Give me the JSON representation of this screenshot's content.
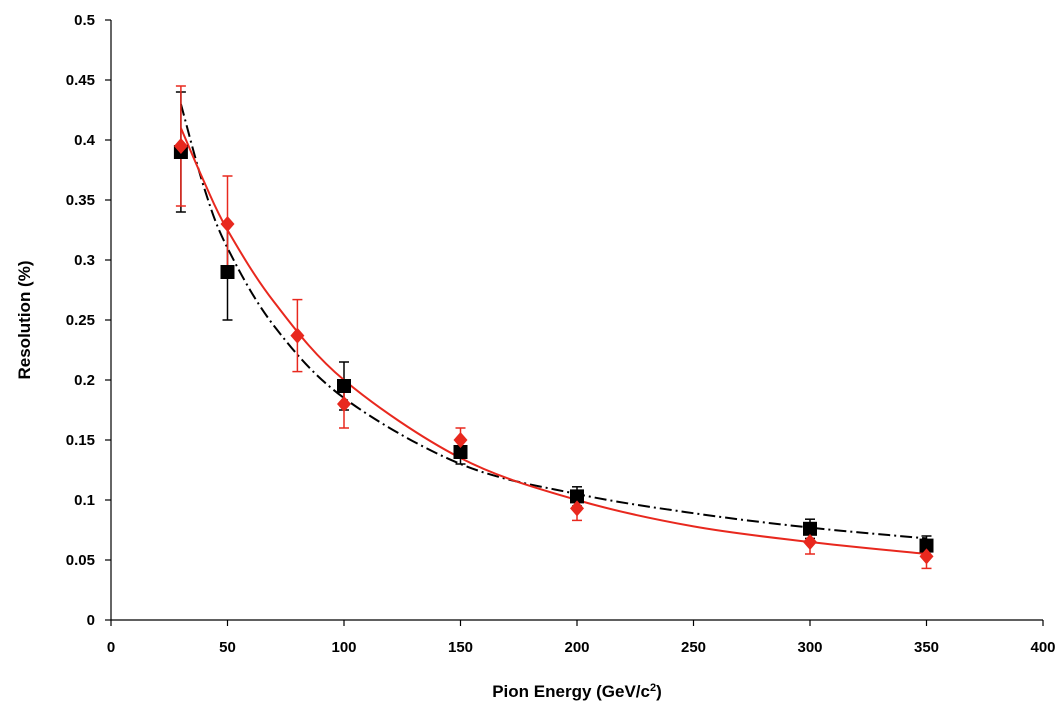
{
  "chart_data": {
    "type": "scatter",
    "title": "",
    "xlabel": "Pion Energy (GeV/c",
    "xlabel_sup": "2",
    "xlabel_end": ")",
    "ylabel": "Resolution (%)",
    "xlim": [
      0,
      400
    ],
    "ylim": [
      0,
      0.5
    ],
    "x_ticks": [
      "0",
      "50",
      "100",
      "150",
      "200",
      "250",
      "300",
      "350",
      "400"
    ],
    "y_ticks": [
      "0",
      "0.05",
      "0.1",
      "0.15",
      "0.2",
      "0.25",
      "0.3",
      "0.35",
      "0.4",
      "0.45",
      "0.5"
    ],
    "grid": false,
    "legend": "none",
    "series": [
      {
        "color": "#000000",
        "marker": "square",
        "fit_style": "dash-dot",
        "x": [
          30,
          50,
          100,
          150,
          200,
          300,
          350
        ],
        "y": [
          0.39,
          0.29,
          0.195,
          0.14,
          0.103,
          0.076,
          0.062
        ],
        "err": [
          0.05,
          0.04,
          0.02,
          0.01,
          0.008,
          0.008,
          0.008
        ],
        "fit": {
          "x": [
            30,
            40,
            50,
            70,
            100,
            150,
            200,
            250,
            300,
            350
          ],
          "y": [
            0.43,
            0.36,
            0.31,
            0.245,
            0.185,
            0.13,
            0.105,
            0.089,
            0.077,
            0.068
          ]
        }
      },
      {
        "color": "#e8281e",
        "marker": "diamond",
        "fit_style": "solid",
        "x": [
          30,
          50,
          80,
          100,
          150,
          200,
          300,
          350
        ],
        "y": [
          0.395,
          0.33,
          0.237,
          0.18,
          0.15,
          0.093,
          0.065,
          0.053
        ],
        "err": [
          0.05,
          0.04,
          0.03,
          0.02,
          0.01,
          0.01,
          0.01,
          0.01
        ],
        "fit": {
          "x": [
            30,
            40,
            50,
            70,
            100,
            150,
            200,
            250,
            300,
            350
          ],
          "y": [
            0.41,
            0.365,
            0.325,
            0.265,
            0.2,
            0.135,
            0.1,
            0.078,
            0.065,
            0.055
          ]
        }
      }
    ]
  }
}
